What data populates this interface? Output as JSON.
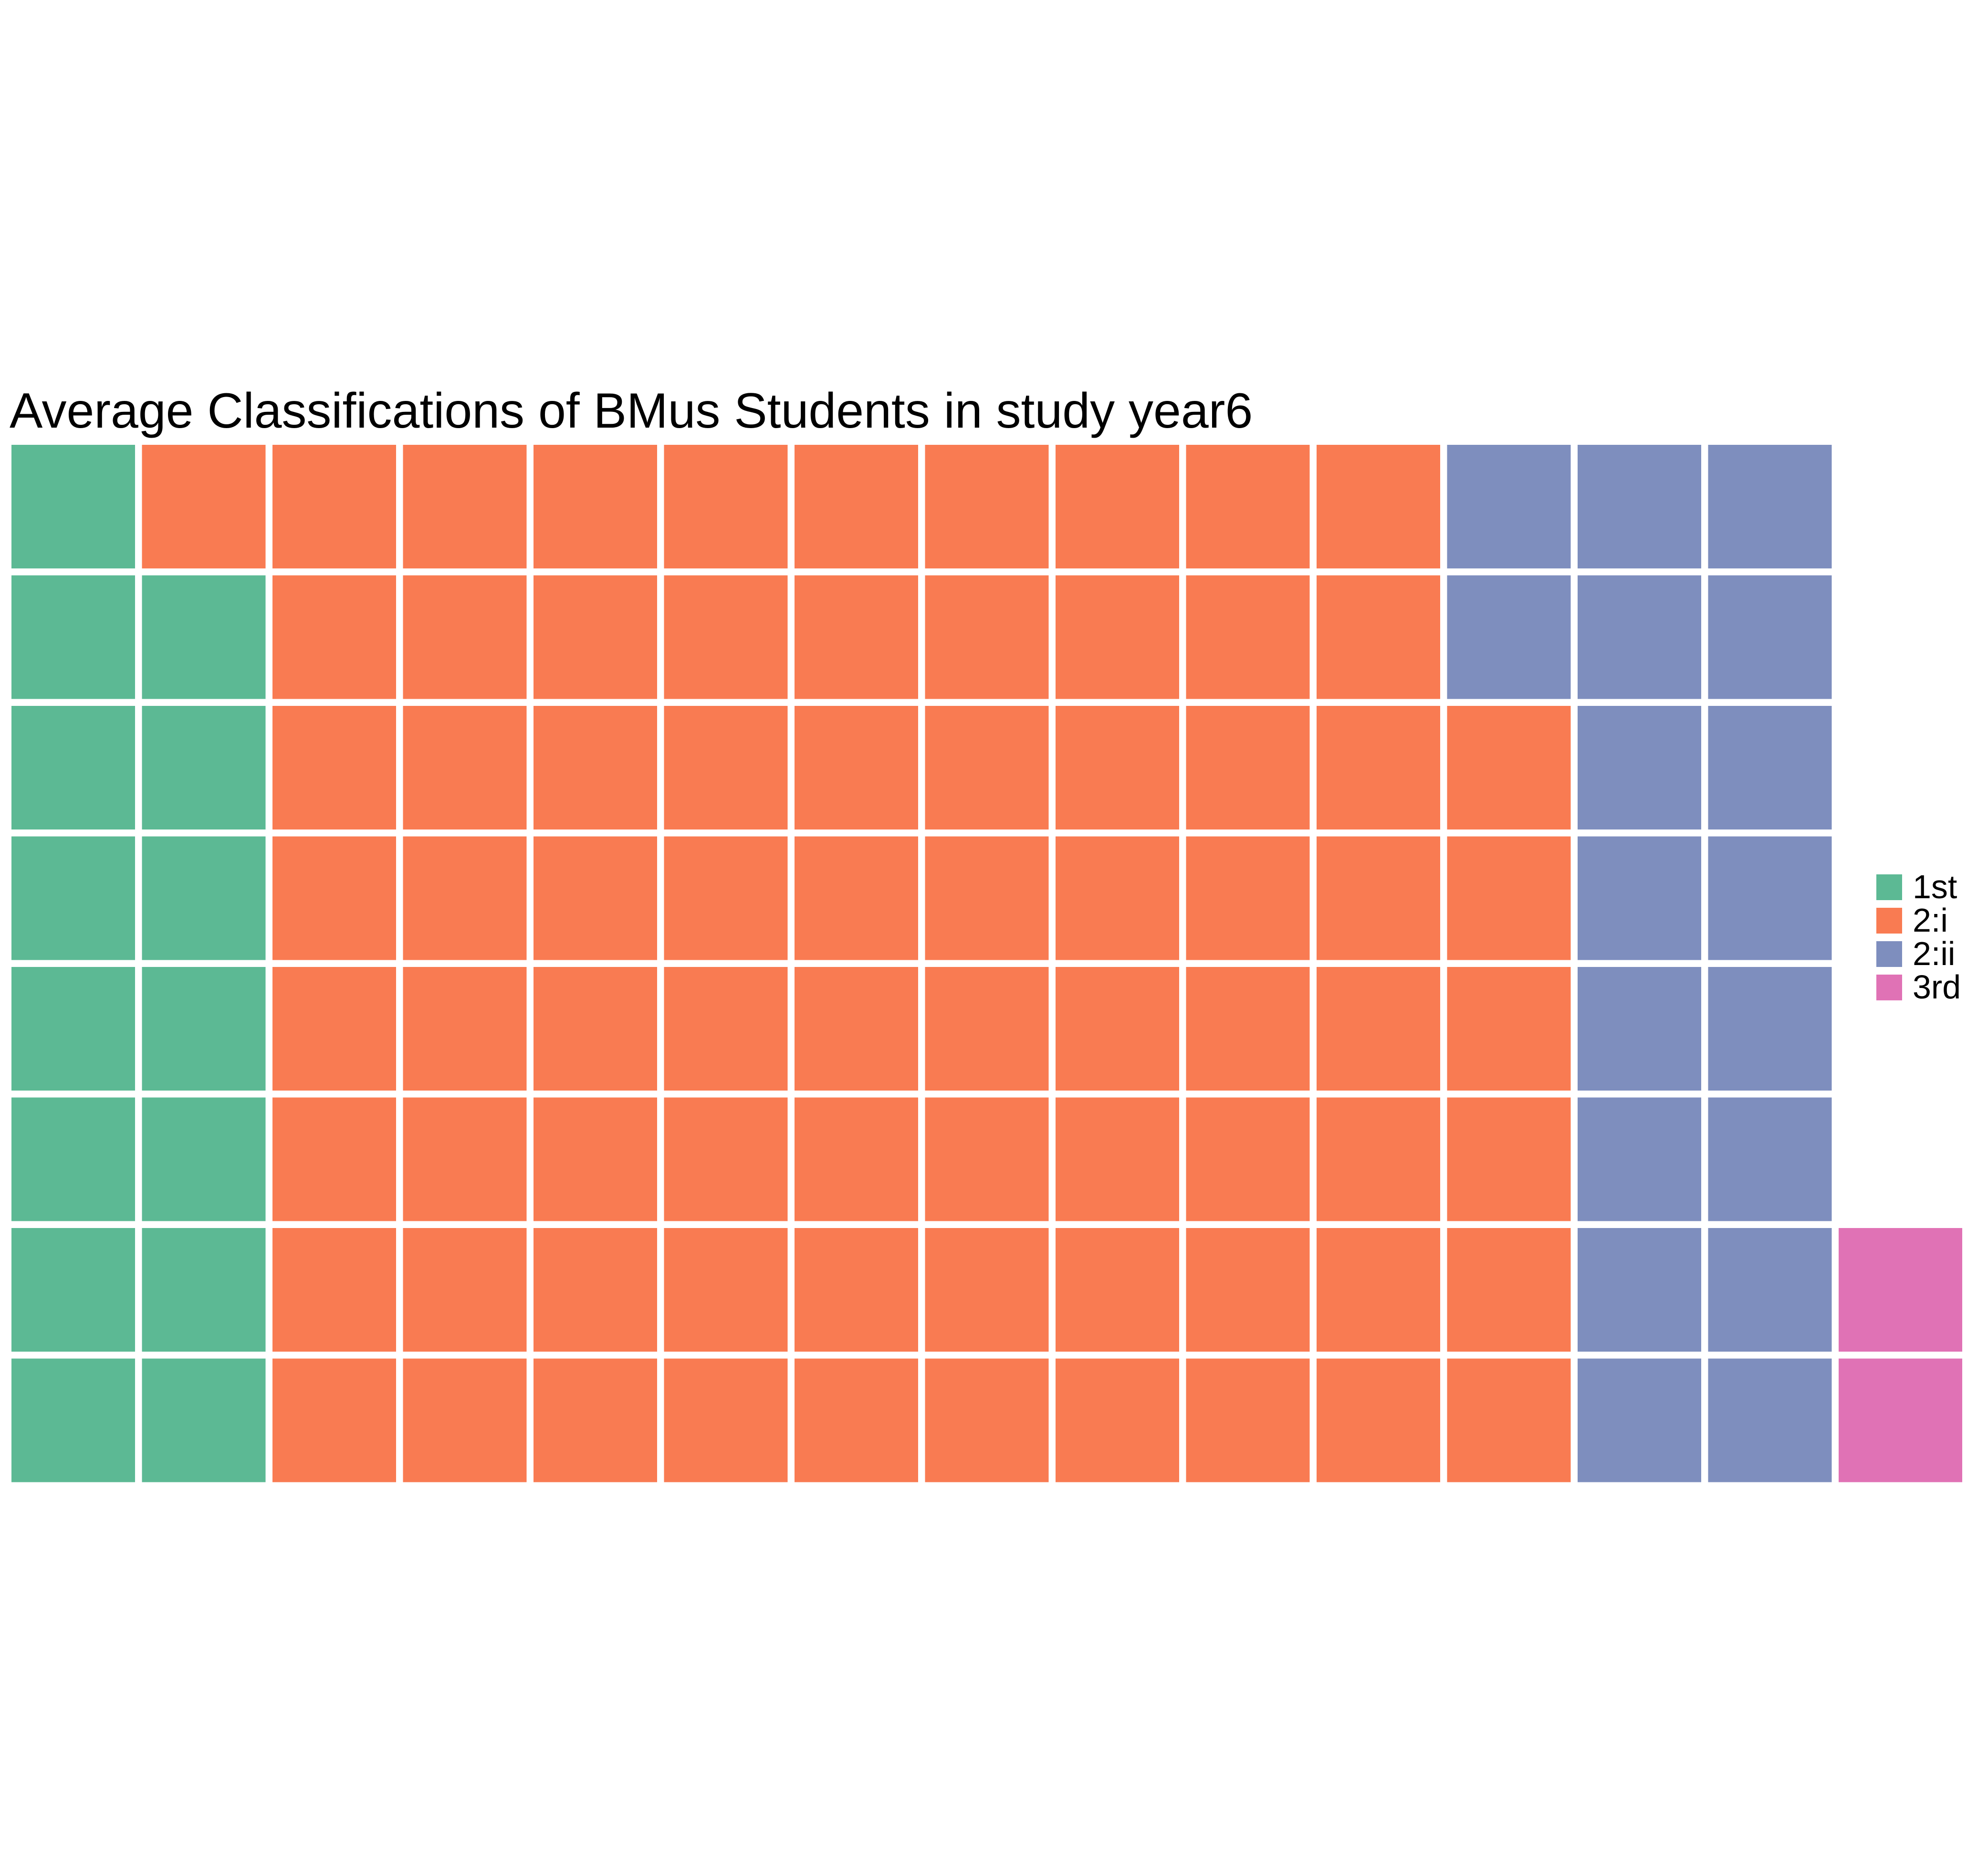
{
  "chart_data": {
    "type": "waffle",
    "title": "Average Classifications of BMus Students in study year6",
    "grid": {
      "rows": 8,
      "columns": 14
    },
    "fill_order": "column-major, bottom-to-top",
    "categories": [
      "1st",
      "2:i",
      "2:ii",
      "3rd"
    ],
    "values": [
      15,
      79,
      18,
      2
    ],
    "colors": [
      "#5cb994",
      "#f97b52",
      "#7e8ebe",
      "#e072b5"
    ],
    "legend": {
      "position": "right",
      "entries": [
        {
          "label": "1st",
          "color": "#5cb994"
        },
        {
          "label": "2:i",
          "color": "#f97b52"
        },
        {
          "label": "2:ii",
          "color": "#7e8ebe"
        },
        {
          "label": "3rd",
          "color": "#e072b5"
        }
      ]
    },
    "xlabel": "",
    "ylabel": ""
  }
}
